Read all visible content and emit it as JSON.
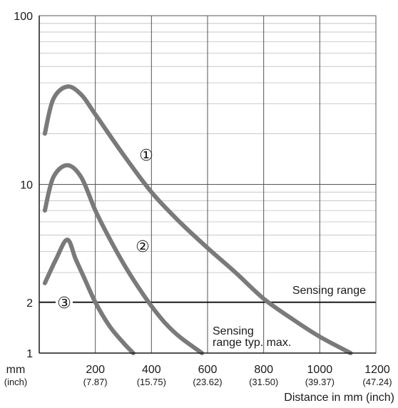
{
  "chart_data": {
    "type": "line",
    "x_unit_label": "mm",
    "x_unit_sub_label": "(inch)",
    "xlabel": "Distance in mm (inch)",
    "ylabel": "",
    "xlim": [
      0,
      1200
    ],
    "ylim": [
      1,
      100
    ],
    "y_scale": "log",
    "grid": true,
    "x_ticks": [
      {
        "value": 200,
        "label": "200",
        "sub": "(7.87)"
      },
      {
        "value": 400,
        "label": "400",
        "sub": "(15.75)"
      },
      {
        "value": 600,
        "label": "600",
        "sub": "(23.62)"
      },
      {
        "value": 800,
        "label": "800",
        "sub": "(31.50)"
      },
      {
        "value": 1000,
        "label": "1000",
        "sub": "(39.37)"
      },
      {
        "value": 1200,
        "label": "1200",
        "sub": "(47.24)"
      }
    ],
    "y_ticks": [
      {
        "value": 1,
        "label": "1"
      },
      {
        "value": 2,
        "label": "2"
      },
      {
        "value": 10,
        "label": "10"
      },
      {
        "value": 100,
        "label": "100"
      }
    ],
    "series": [
      {
        "name": "①",
        "color": "#7a7a7a",
        "x": [
          20,
          50,
          100,
          150,
          200,
          300,
          400,
          500,
          600,
          700,
          800,
          900,
          1000,
          1110
        ],
        "y": [
          20,
          32,
          38,
          34,
          26,
          15,
          9,
          6,
          4.2,
          3.0,
          2.1,
          1.6,
          1.25,
          1.0
        ]
      },
      {
        "name": "②",
        "color": "#7a7a7a",
        "x": [
          20,
          50,
          100,
          150,
          200,
          250,
          300,
          350,
          400,
          450,
          500,
          580
        ],
        "y": [
          7,
          11,
          13,
          11,
          7,
          4.8,
          3.4,
          2.5,
          1.9,
          1.5,
          1.25,
          1.0
        ]
      },
      {
        "name": "③",
        "color": "#7a7a7a",
        "x": [
          20,
          60,
          100,
          130,
          160,
          200,
          250,
          300,
          335
        ],
        "y": [
          2.6,
          3.6,
          4.7,
          3.6,
          2.8,
          2.0,
          1.45,
          1.15,
          1.0
        ]
      }
    ],
    "reference_line": {
      "y": 2,
      "label": "Sensing range",
      "color": "#1a1a1a"
    },
    "annotations": [
      {
        "text": "Sensing",
        "x": 600,
        "y": 1.6
      },
      {
        "text": "range typ. max.",
        "x": 600,
        "y": 1.32
      }
    ],
    "colors": {
      "curve": "#7a7a7a",
      "grid": "#bfbfbf",
      "axis": "#1a1a1a"
    }
  }
}
